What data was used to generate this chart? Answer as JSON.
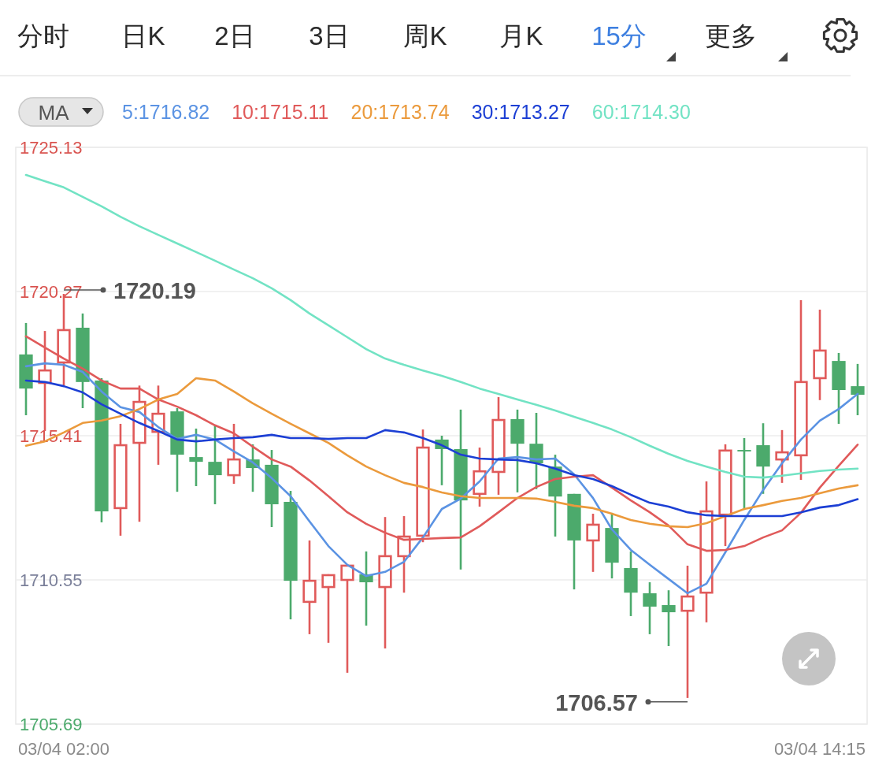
{
  "chart_data": {
    "type": "candlestick",
    "categories": [
      null,
      null,
      "03/04 02:00",
      null,
      null,
      null,
      null,
      null,
      null,
      null,
      null,
      null,
      null,
      null,
      null,
      null,
      null,
      null,
      null,
      null,
      null,
      null,
      null,
      null,
      null,
      null,
      null,
      null,
      null,
      null,
      null,
      null,
      null,
      null,
      null,
      null,
      null,
      null,
      null,
      null,
      null,
      null,
      "03/04 14:15",
      null,
      null
    ],
    "ohlc": [
      [
        1718.15,
        1719.21,
        1716.1,
        1717.0
      ],
      [
        1717.19,
        1718.94,
        1715.57,
        1717.61
      ],
      [
        1717.88,
        1720.19,
        1717.1,
        1718.97
      ],
      [
        1719.05,
        1719.53,
        1716.34,
        1717.22
      ],
      [
        1717.27,
        1717.35,
        1712.49,
        1712.86
      ],
      [
        1712.97,
        1715.81,
        1712.04,
        1715.09
      ],
      [
        1715.17,
        1717.1,
        1712.51,
        1716.55
      ],
      [
        1715.54,
        1717.1,
        1714.43,
        1716.15
      ],
      [
        1716.23,
        1716.34,
        1713.52,
        1714.77
      ],
      [
        1714.69,
        1715.65,
        1713.71,
        1714.53
      ],
      [
        1714.53,
        1715.76,
        1713.1,
        1714.08
      ],
      [
        1714.08,
        1715.81,
        1713.79,
        1714.61
      ],
      [
        1714.61,
        1715.12,
        1713.52,
        1714.32
      ],
      [
        1714.43,
        1714.93,
        1712.33,
        1713.1
      ],
      [
        1713.18,
        1713.55,
        1709.22,
        1710.52
      ],
      [
        1709.81,
        1711.88,
        1708.72,
        1710.52
      ],
      [
        1710.31,
        1710.74,
        1708.43,
        1710.71
      ],
      [
        1710.55,
        1711.05,
        1707.42,
        1711.03
      ],
      [
        1710.74,
        1711.51,
        1709.01,
        1710.47
      ],
      [
        1710.31,
        1712.67,
        1708.24,
        1711.35
      ],
      [
        1711.35,
        1712.7,
        1710.12,
        1712.01
      ],
      [
        1712.04,
        1715.62,
        1711.82,
        1715.01
      ],
      [
        1715.28,
        1715.41,
        1713.74,
        1714.96
      ],
      [
        1714.96,
        1716.29,
        1710.9,
        1713.23
      ],
      [
        1713.45,
        1715.01,
        1713.02,
        1714.21
      ],
      [
        1714.19,
        1716.71,
        1713.42,
        1715.94
      ],
      [
        1715.97,
        1716.29,
        1713.5,
        1715.14
      ],
      [
        1715.14,
        1716.18,
        1713.61,
        1714.48
      ],
      [
        1714.37,
        1714.77,
        1712.01,
        1713.36
      ],
      [
        1713.45,
        1713.45,
        1710.23,
        1711.88
      ],
      [
        1711.88,
        1712.78,
        1710.82,
        1712.41
      ],
      [
        1712.3,
        1712.81,
        1710.6,
        1711.13
      ],
      [
        1710.95,
        1711.51,
        1709.33,
        1710.12
      ],
      [
        1710.1,
        1710.47,
        1708.72,
        1709.65
      ],
      [
        1709.7,
        1710.2,
        1708.32,
        1709.46
      ],
      [
        1709.51,
        1711.03,
        1706.57,
        1709.99
      ],
      [
        1710.12,
        1713.87,
        1709.12,
        1712.86
      ],
      [
        1712.75,
        1715.12,
        1711.69,
        1714.91
      ],
      [
        1714.93,
        1715.33,
        1712.91,
        1714.88
      ],
      [
        1715.09,
        1715.83,
        1713.45,
        1714.37
      ],
      [
        1714.61,
        1715.6,
        1713.82,
        1714.85
      ],
      [
        1714.75,
        1719.98,
        1713.92,
        1717.22
      ],
      [
        1717.35,
        1719.66,
        1716.61,
        1718.28
      ],
      [
        1717.93,
        1718.2,
        1715.81,
        1716.95
      ],
      [
        1717.08,
        1717.83,
        1716.1,
        1716.79
      ]
    ],
    "series": [
      {
        "name": "5:1716.82",
        "type": "line",
        "color": "#5b93e3",
        "values": [
          1717.75,
          1717.85,
          1717.8,
          1717.56,
          1716.9,
          1716.37,
          1716.21,
          1715.7,
          1715.3,
          1715.44,
          1715.28,
          1714.88,
          1714.51,
          1713.98,
          1713.37,
          1712.52,
          1711.69,
          1711.06,
          1710.68,
          1710.82,
          1711.16,
          1711.98,
          1712.94,
          1713.29,
          1713.87,
          1714.64,
          1714.69,
          1714.61,
          1714.64,
          1714.11,
          1713.31,
          1712.25,
          1711.56,
          1711.06,
          1710.58,
          1710.1,
          1710.42,
          1711.48,
          1712.57,
          1713.58,
          1714.48,
          1715.28,
          1715.92,
          1716.31,
          1716.82
        ]
      },
      {
        "name": "10:1715.11",
        "type": "line",
        "color": "#e05a5a",
        "values": [
          1718.76,
          1718.38,
          1718.01,
          1717.67,
          1717.27,
          1717.0,
          1717.0,
          1716.63,
          1716.39,
          1716.1,
          1715.76,
          1715.49,
          1715.04,
          1714.61,
          1714.37,
          1713.9,
          1713.37,
          1712.83,
          1712.44,
          1712.14,
          1711.9,
          1711.93,
          1711.96,
          1711.98,
          1712.36,
          1712.83,
          1713.31,
          1713.68,
          1713.95,
          1714.03,
          1714.08,
          1713.66,
          1713.23,
          1712.83,
          1712.38,
          1711.75,
          1711.53,
          1711.56,
          1711.69,
          1711.98,
          1712.22,
          1712.81,
          1713.66,
          1714.4,
          1715.11
        ]
      },
      {
        "name": "20:1713.74",
        "type": "line",
        "color": "#eb9a3c",
        "values": [
          1715.07,
          1715.22,
          1715.52,
          1715.84,
          1715.92,
          1716.07,
          1716.31,
          1716.63,
          1716.82,
          1717.35,
          1717.27,
          1716.9,
          1716.5,
          1716.15,
          1715.81,
          1715.49,
          1715.17,
          1714.75,
          1714.37,
          1714.08,
          1713.82,
          1713.68,
          1713.5,
          1713.37,
          1713.31,
          1713.31,
          1713.31,
          1713.29,
          1713.18,
          1713.05,
          1712.97,
          1712.78,
          1712.57,
          1712.44,
          1712.36,
          1712.33,
          1712.46,
          1712.7,
          1712.94,
          1713.07,
          1713.21,
          1713.31,
          1713.47,
          1713.63,
          1713.74
        ]
      },
      {
        "name": "30:1713.27",
        "type": "line",
        "color": "#1c3fd4",
        "values": [
          1717.27,
          1717.22,
          1717.08,
          1716.87,
          1716.47,
          1716.15,
          1715.84,
          1715.57,
          1715.28,
          1715.22,
          1715.28,
          1715.33,
          1715.36,
          1715.44,
          1715.33,
          1715.33,
          1715.3,
          1715.33,
          1715.33,
          1715.6,
          1715.52,
          1715.33,
          1715.09,
          1714.77,
          1714.64,
          1714.61,
          1714.59,
          1714.48,
          1714.3,
          1714.08,
          1713.95,
          1713.71,
          1713.42,
          1713.15,
          1713.02,
          1712.83,
          1712.73,
          1712.7,
          1712.7,
          1712.7,
          1712.7,
          1712.83,
          1712.99,
          1713.07,
          1713.27
        ]
      },
      {
        "name": "60:1714.30",
        "type": "line",
        "color": "#72e3c4",
        "values": [
          1724.2,
          1723.99,
          1723.78,
          1723.46,
          1723.14,
          1722.79,
          1722.47,
          1722.18,
          1721.89,
          1721.6,
          1721.31,
          1721.01,
          1720.72,
          1720.38,
          1719.98,
          1719.53,
          1719.13,
          1718.73,
          1718.33,
          1718.01,
          1717.8,
          1717.61,
          1717.43,
          1717.22,
          1717.0,
          1716.82,
          1716.63,
          1716.45,
          1716.26,
          1716.05,
          1715.84,
          1715.62,
          1715.36,
          1715.07,
          1714.8,
          1714.56,
          1714.37,
          1714.19,
          1714.03,
          1714.0,
          1714.06,
          1714.14,
          1714.22,
          1714.27,
          1714.3
        ]
      }
    ],
    "ylim": [
      1705.69,
      1725.13
    ],
    "yticks": [
      1705.69,
      1710.55,
      1715.41,
      1720.27,
      1725.13
    ],
    "grid": "y",
    "legend": "top left",
    "annotations": [
      "分时",
      "日K",
      "2日",
      "3日",
      "周K",
      "月K",
      "15分",
      "更多",
      "MA",
      "1720.19",
      "1706.57"
    ]
  }
}
